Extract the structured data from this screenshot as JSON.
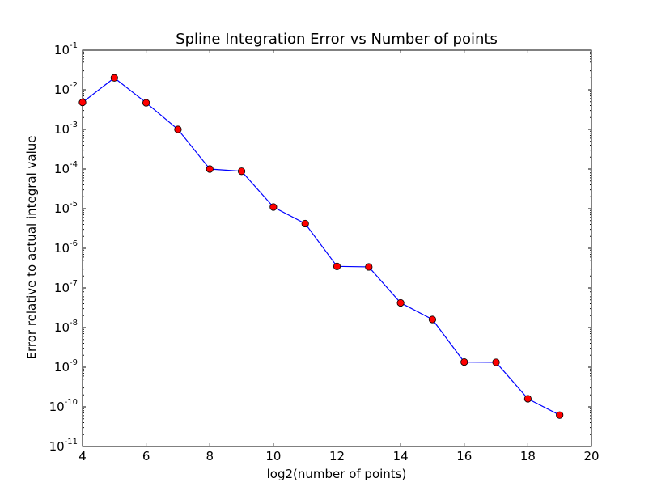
{
  "chart_data": {
    "type": "line",
    "title": "Spline Integration Error vs Number of points",
    "xlabel": "log2(number of points)",
    "ylabel": "Error relative to actual integral value",
    "xlim": [
      4,
      20
    ],
    "ylim": [
      1e-11,
      0.1
    ],
    "yscale": "log",
    "grid": false,
    "x_ticks": [
      4,
      6,
      8,
      10,
      12,
      14,
      16,
      18,
      20
    ],
    "y_ticks": [
      {
        "base": "10",
        "exp": "-11",
        "value": 1e-11
      },
      {
        "base": "10",
        "exp": "-10",
        "value": 1e-10
      },
      {
        "base": "10",
        "exp": "-9",
        "value": 1e-09
      },
      {
        "base": "10",
        "exp": "-8",
        "value": 1e-08
      },
      {
        "base": "10",
        "exp": "-7",
        "value": 1e-07
      },
      {
        "base": "10",
        "exp": "-6",
        "value": 1e-06
      },
      {
        "base": "10",
        "exp": "-5",
        "value": 1e-05
      },
      {
        "base": "10",
        "exp": "-4",
        "value": 0.0001
      },
      {
        "base": "10",
        "exp": "-3",
        "value": 0.001
      },
      {
        "base": "10",
        "exp": "-2",
        "value": 0.01
      },
      {
        "base": "10",
        "exp": "-1",
        "value": 0.1
      }
    ],
    "series": [
      {
        "line_color": "#0000ff",
        "marker_color": "#ff0000",
        "x": [
          4,
          5,
          6,
          7,
          8,
          9,
          10,
          11,
          12,
          13,
          14,
          15,
          16,
          17,
          18,
          19
        ],
        "y": [
          0.0048,
          0.02,
          0.0047,
          0.001,
          0.0001,
          8.8e-05,
          1.1e-05,
          4.2e-06,
          3.5e-07,
          3.4e-07,
          4.2e-08,
          1.6e-08,
          1.35e-09,
          1.33e-09,
          1.6e-10,
          6.2e-11
        ]
      }
    ]
  }
}
